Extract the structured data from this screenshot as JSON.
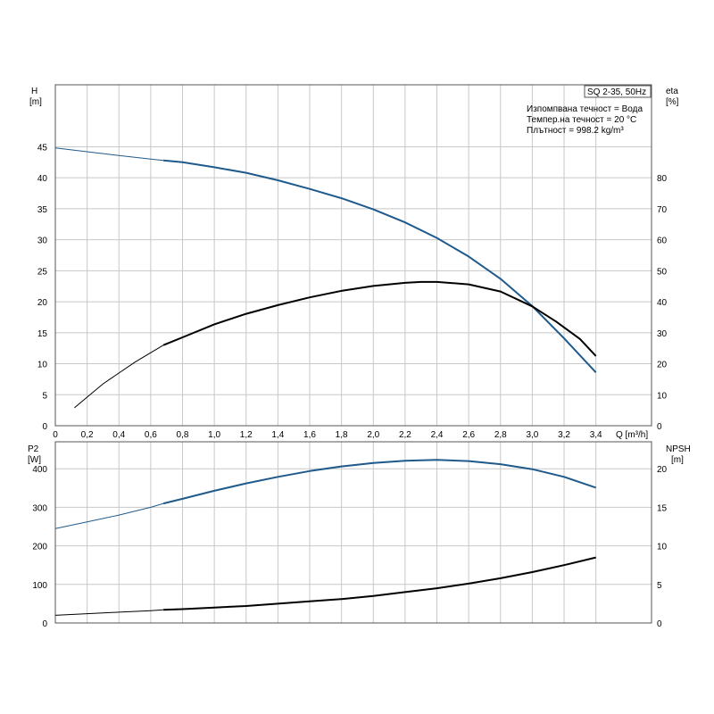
{
  "chart_data": [
    {
      "type": "line",
      "panel": "top",
      "x_unit_label": "Q [m³/h]",
      "xlim": [
        0,
        3.75
      ],
      "x_ticks": [
        "0",
        "0,2",
        "0,4",
        "0,6",
        "0,8",
        "1,0",
        "1,2",
        "1,4",
        "1,6",
        "1,8",
        "2,0",
        "2,2",
        "2,4",
        "2,6",
        "2,8",
        "3,0",
        "3,2",
        "3,4"
      ],
      "left_axis": {
        "label": "H",
        "unit": "[m]",
        "lim": [
          0,
          55
        ],
        "ticks": [
          "0",
          "5",
          "10",
          "15",
          "20",
          "25",
          "30",
          "35",
          "40",
          "45"
        ]
      },
      "right_axis": {
        "label": "eta",
        "unit": "[%]",
        "lim": [
          0,
          110
        ],
        "ticks": [
          "0",
          "10",
          "20",
          "30",
          "40",
          "50",
          "60",
          "70",
          "80"
        ]
      },
      "info_box": {
        "title": "SQ 2-35, 50Hz",
        "lines": [
          "Изпомпвана течност = Вода",
          "Темпер.на течност = 20 °C",
          "Плътност = 998.2 kg/m³"
        ]
      },
      "series": [
        {
          "axis": "left",
          "color": "#1f5a8c",
          "bold_from_x": 0.68,
          "x": [
            0,
            0.2,
            0.4,
            0.6,
            0.68,
            0.8,
            1.0,
            1.2,
            1.4,
            1.6,
            1.8,
            2.0,
            2.2,
            2.4,
            2.6,
            2.8,
            3.0,
            3.2,
            3.4
          ],
          "y": [
            44.8,
            44.2,
            43.6,
            43.0,
            42.8,
            42.5,
            41.7,
            40.8,
            39.6,
            38.2,
            36.7,
            34.9,
            32.8,
            30.3,
            27.3,
            23.7,
            19.3,
            14.1,
            8.6
          ]
        },
        {
          "axis": "right",
          "color": "#000000",
          "bold_from_x": 0.68,
          "x": [
            0.12,
            0.3,
            0.5,
            0.68,
            0.8,
            1.0,
            1.2,
            1.4,
            1.6,
            1.8,
            2.0,
            2.2,
            2.3,
            2.4,
            2.6,
            2.8,
            3.0,
            3.15,
            3.3,
            3.4
          ],
          "y": [
            5.8,
            13.5,
            20.5,
            26.0,
            28.5,
            32.7,
            36.1,
            38.9,
            41.4,
            43.5,
            45.1,
            46.1,
            46.4,
            46.4,
            45.6,
            43.3,
            38.5,
            33.6,
            28.0,
            22.5
          ]
        }
      ]
    },
    {
      "type": "line",
      "panel": "bottom",
      "xlim": [
        0,
        3.75
      ],
      "left_axis": {
        "label": "P2",
        "unit": "[W]",
        "lim": [
          0,
          470
        ],
        "ticks": [
          "0",
          "100",
          "200",
          "300",
          "400"
        ]
      },
      "right_axis": {
        "label": "NPSH",
        "unit": "[m]",
        "lim": [
          0,
          23.5
        ],
        "ticks": [
          "0",
          "5",
          "10",
          "15",
          "20"
        ]
      },
      "series": [
        {
          "axis": "left",
          "color": "#1f5a8c",
          "bold_from_x": 0.68,
          "x": [
            0,
            0.2,
            0.4,
            0.6,
            0.68,
            0.8,
            1.0,
            1.2,
            1.4,
            1.6,
            1.8,
            2.0,
            2.2,
            2.4,
            2.6,
            2.8,
            3.0,
            3.2,
            3.4
          ],
          "y": [
            245,
            262,
            280,
            300,
            310,
            322,
            343,
            362,
            379,
            394,
            406,
            415,
            421,
            423,
            420,
            412,
            399,
            379,
            351
          ]
        },
        {
          "axis": "right",
          "color": "#000000",
          "bold_from_x": 0.68,
          "x": [
            0,
            0.2,
            0.4,
            0.6,
            0.68,
            0.8,
            1.0,
            1.2,
            1.4,
            1.6,
            1.8,
            2.0,
            2.2,
            2.4,
            2.6,
            2.8,
            3.0,
            3.2,
            3.4
          ],
          "y": [
            1.0,
            1.2,
            1.4,
            1.6,
            1.7,
            1.8,
            2.0,
            2.2,
            2.5,
            2.8,
            3.1,
            3.5,
            4.0,
            4.5,
            5.1,
            5.8,
            6.6,
            7.5,
            8.5
          ]
        }
      ]
    }
  ]
}
